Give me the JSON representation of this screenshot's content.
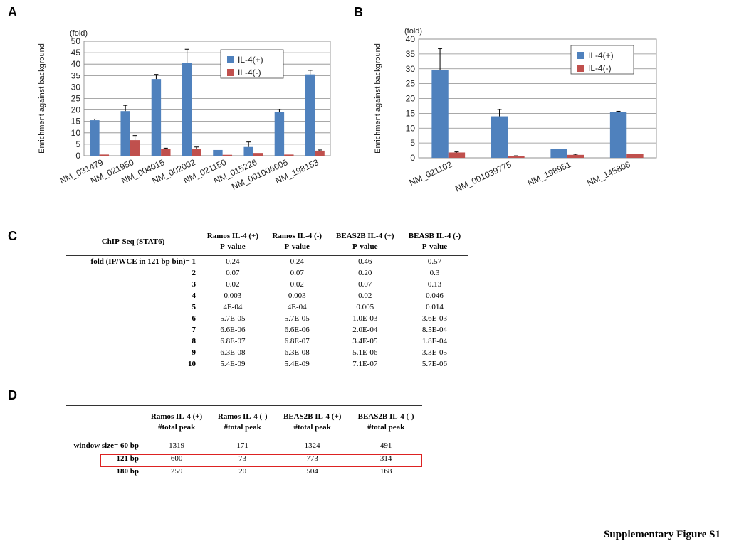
{
  "panels": {
    "a": "A",
    "b": "B",
    "c": "C",
    "d": "D"
  },
  "figure_title": "Supplementary Figure S1",
  "chart_data": [
    {
      "type": "bar",
      "panel": "A",
      "ylabel": "Enrichment against  background",
      "yunit": "(fold)",
      "ylim": [
        0,
        50
      ],
      "yticks": [
        0,
        5,
        10,
        15,
        20,
        25,
        30,
        35,
        40,
        45,
        50
      ],
      "categories": [
        "NM_031479",
        "NM_021950",
        "NM_004015",
        "NM_002002",
        "NM_021150",
        "NM_015226",
        "NM_001006605",
        "NM_198153"
      ],
      "series": [
        {
          "name": "IL-4(+)",
          "color": "#4f81bd",
          "values": [
            15.5,
            19.5,
            33.5,
            40.5,
            2.5,
            3.8,
            19,
            35.5
          ],
          "errors": [
            0.5,
            2.5,
            2,
            6,
            0,
            2.2,
            1.3,
            1.8
          ]
        },
        {
          "name": "IL-4(-)",
          "color": "#c0504d",
          "values": [
            0.5,
            6.8,
            3.0,
            3.0,
            0.4,
            1.2,
            0.5,
            2.2
          ],
          "errors": [
            0,
            2,
            0.3,
            0.8,
            0,
            0,
            0,
            0.3
          ]
        }
      ],
      "grid": true,
      "legend": "top-right"
    },
    {
      "type": "bar",
      "panel": "B",
      "ylabel": "Enrichment against  background",
      "yunit": "(fold)",
      "ylim": [
        0,
        40
      ],
      "yticks": [
        0,
        5,
        10,
        15,
        20,
        25,
        30,
        35,
        40
      ],
      "categories": [
        "NM_021102",
        "NM_001039775",
        "NM_198951",
        "NM_145806"
      ],
      "series": [
        {
          "name": "IL-4(+)",
          "color": "#4f81bd",
          "values": [
            29.5,
            14,
            3,
            15.5
          ],
          "errors": [
            7.3,
            2.3,
            0,
            0.2
          ]
        },
        {
          "name": "IL-4(-)",
          "color": "#c0504d",
          "values": [
            1.8,
            0.5,
            1,
            1.2
          ],
          "errors": [
            0.2,
            0.2,
            0.2,
            0
          ]
        }
      ],
      "grid": true,
      "legend": "top-right"
    }
  ],
  "table_c": {
    "headers": [
      "ChIP-Seq (STAT6)",
      "Ramos IL-4 (+)\nP-value",
      "Ramos IL-4 (-)\nP-value",
      "BEAS2B IL-4 (+)\nP-value",
      "BEASB IL-4 (-)\nP-value"
    ],
    "row_label_prefix": "fold (IP/WCE in 121 bp bin)= ",
    "rows": [
      [
        "1",
        "0.24",
        "0.24",
        "0.46",
        "0.57"
      ],
      [
        "2",
        "0.07",
        "0.07",
        "0.20",
        "0.3"
      ],
      [
        "3",
        "0.02",
        "0.02",
        "0.07",
        "0.13"
      ],
      [
        "4",
        "0.003",
        "0.003",
        "0.02",
        "0.046"
      ],
      [
        "5",
        "4E-04",
        "4E-04",
        "0.005",
        "0.014"
      ],
      [
        "6",
        "5.7E-05",
        "5.7E-05",
        "1.0E-03",
        "3.6E-03"
      ],
      [
        "7",
        "6.6E-06",
        "6.6E-06",
        "2.0E-04",
        "8.5E-04"
      ],
      [
        "8",
        "6.8E-07",
        "6.8E-07",
        "3.4E-05",
        "1.8E-04"
      ],
      [
        "9",
        "6.3E-08",
        "6.3E-08",
        "5.1E-06",
        "3.3E-05"
      ],
      [
        "10",
        "5.4E-09",
        "5.4E-09",
        "7.1E-07",
        "5.7E-06"
      ]
    ]
  },
  "table_d": {
    "headers": [
      "",
      "Ramos IL-4 (+)\n#total peak",
      "Ramos IL-4 (-)\n#total peak",
      "BEAS2B IL-4 (+)\n#total peak",
      "BEAS2B IL-4 (-)\n#total peak"
    ],
    "rows": [
      [
        "window size= 60 bp",
        "1319",
        "171",
        "1324",
        "491"
      ],
      [
        "121 bp",
        "600",
        "73",
        "773",
        "314"
      ],
      [
        "180 bp",
        "259",
        "20",
        "504",
        "168"
      ]
    ],
    "highlighted_row": "121 bp"
  }
}
